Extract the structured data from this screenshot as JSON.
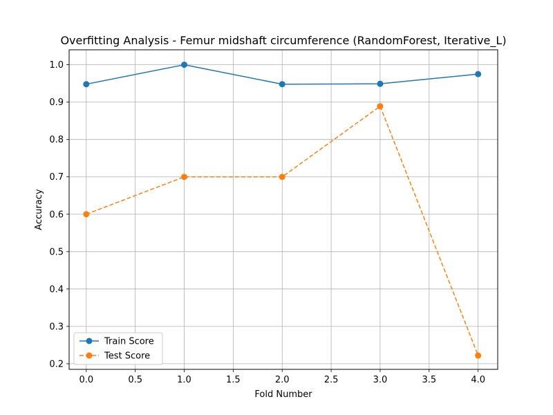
{
  "chart_data": {
    "type": "line",
    "title": "Overfitting Analysis - Femur midshaft circumference (RandomForest, Iterative_L)",
    "xlabel": "Fold Number",
    "ylabel": "Accuracy",
    "xlim": [
      -0.175,
      4.2
    ],
    "ylim": [
      0.185,
      1.04
    ],
    "xticks": [
      "0.0",
      "0.5",
      "1.0",
      "1.5",
      "2.0",
      "2.5",
      "3.0",
      "3.5",
      "4.0"
    ],
    "yticks": [
      "0.2",
      "0.3",
      "0.4",
      "0.5",
      "0.6",
      "0.7",
      "0.8",
      "0.9",
      "1.0"
    ],
    "grid": true,
    "legend_position": "lower-left",
    "x": [
      0,
      1,
      2,
      3,
      4
    ],
    "series": [
      {
        "name": "Train Score",
        "values": [
          0.948,
          1.0,
          0.948,
          0.949,
          0.975
        ],
        "color": "#1f77b4",
        "dash": "solid"
      },
      {
        "name": "Test Score",
        "values": [
          0.6,
          0.7,
          0.7,
          0.889,
          0.222
        ],
        "color": "#ff7f0e",
        "dash": "dashed"
      }
    ]
  }
}
